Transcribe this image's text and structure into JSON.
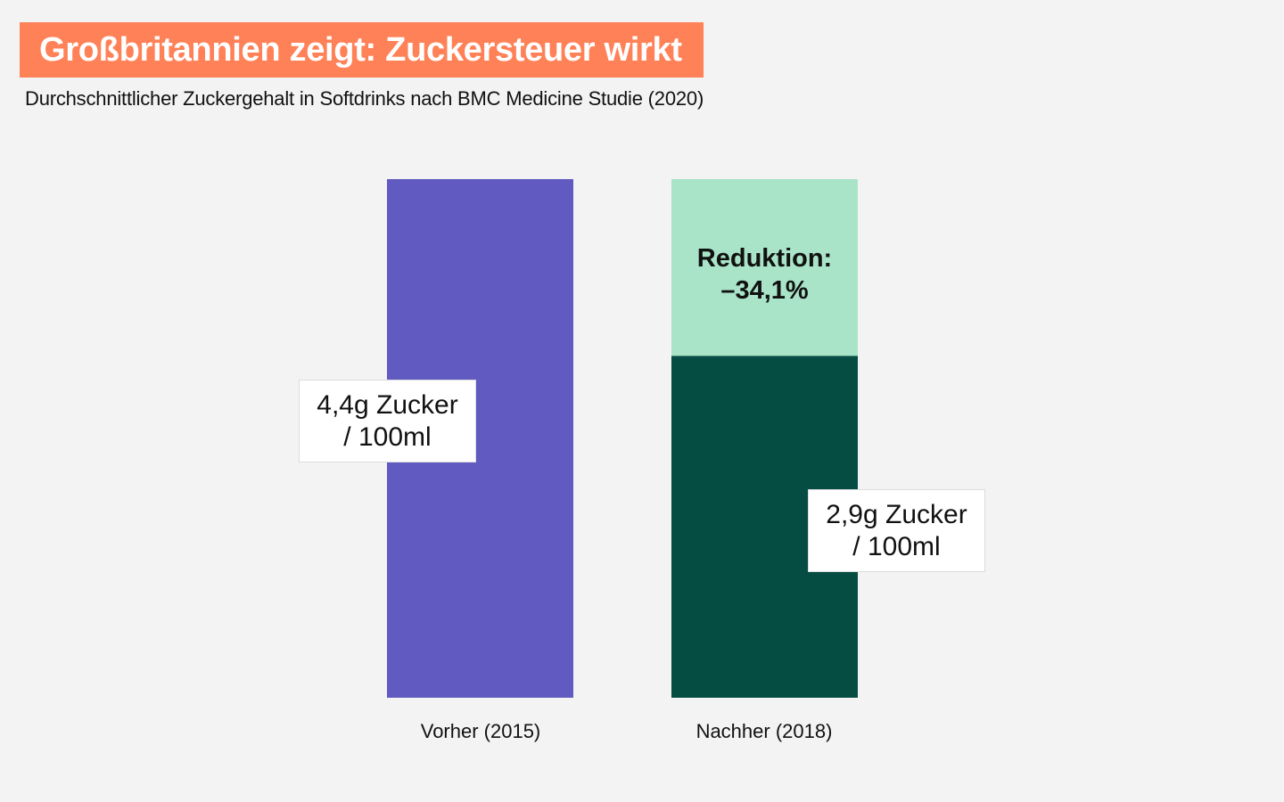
{
  "header": {
    "title": "Großbritannien zeigt: Zuckersteuer wirkt",
    "subtitle": "Durchschnittlicher Zuckergehalt in Softdrinks nach BMC Medicine Studie (2020)"
  },
  "colors": {
    "background": "#f3f3f3",
    "title_bg": "#ff8157",
    "before_bar": "#615ac0",
    "after_bar": "#054c42",
    "reduction_bar": "#a9e4c9"
  },
  "chart_data": {
    "type": "bar",
    "title": "Großbritannien zeigt: Zuckersteuer wirkt",
    "subtitle": "Durchschnittlicher Zuckergehalt in Softdrinks nach BMC Medicine Studie (2020)",
    "categories": [
      "Vorher (2015)",
      "Nachher (2018)"
    ],
    "values": [
      4.4,
      2.9
    ],
    "unit": "g Zucker / 100ml",
    "ylim": [
      0,
      4.4
    ],
    "data_labels": [
      {
        "line1": "4,4g Zucker",
        "line2": "/ 100ml"
      },
      {
        "line1": "2,9g Zucker",
        "line2": "/ 100ml"
      }
    ],
    "reduction": {
      "line1": "Reduktion:",
      "line2": "–34,1%",
      "percent": -34.1
    },
    "xlabel": "",
    "ylabel": "",
    "grid": false
  }
}
